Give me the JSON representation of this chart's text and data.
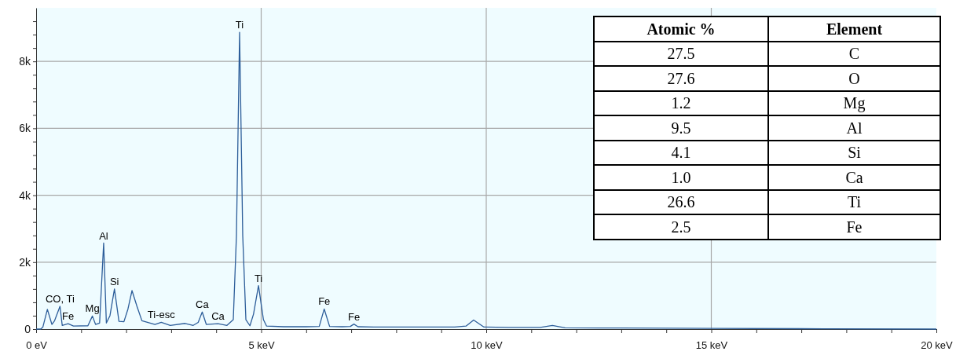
{
  "chart_data": [
    {
      "type": "line",
      "x": [
        0,
        0.1,
        0.15,
        0.25,
        0.35,
        0.41,
        0.53,
        0.58,
        0.71,
        0.83,
        1.15,
        1.25,
        1.32,
        1.41,
        1.5,
        1.56,
        1.64,
        1.74,
        1.84,
        1.95,
        2.04,
        2.13,
        2.24,
        2.35,
        2.64,
        2.78,
        2.98,
        3.31,
        3.49,
        3.6,
        3.69,
        3.78,
        4.04,
        4.24,
        4.38,
        4.45,
        4.52,
        4.59,
        4.66,
        4.75,
        4.83,
        4.94,
        5.05,
        5.12,
        5.5,
        6.0,
        6.29,
        6.4,
        6.52,
        6.8,
        6.98,
        7.06,
        7.15,
        7.5,
        8.5,
        9.3,
        9.55,
        9.72,
        9.95,
        10.5,
        11.2,
        11.47,
        11.75,
        13,
        15,
        17.5,
        20
      ],
      "series": [
        {
          "color": "#2d5e9a",
          "values": [
            0,
            0,
            60,
            590,
            140,
            250,
            680,
            110,
            160,
            90,
            100,
            390,
            140,
            180,
            2570,
            180,
            400,
            1200,
            230,
            220,
            600,
            1150,
            680,
            250,
            140,
            200,
            110,
            170,
            110,
            200,
            510,
            140,
            160,
            110,
            280,
            2790,
            8870,
            2790,
            280,
            100,
            450,
            1300,
            280,
            90,
            70,
            70,
            80,
            600,
            80,
            70,
            80,
            150,
            70,
            60,
            60,
            60,
            90,
            270,
            60,
            50,
            50,
            110,
            40,
            30,
            20,
            10,
            0
          ]
        }
      ],
      "xlim": [
        0,
        20
      ],
      "xticks": [
        {
          "value": 0,
          "label": "0 eV"
        },
        {
          "value": 1,
          "label": null
        },
        {
          "value": 2,
          "label": null
        },
        {
          "value": 3,
          "label": null
        },
        {
          "value": 4,
          "label": null
        },
        {
          "value": 5,
          "label": "5 keV"
        },
        {
          "value": 6,
          "label": null
        },
        {
          "value": 7,
          "label": null
        },
        {
          "value": 8,
          "label": null
        },
        {
          "value": 9,
          "label": null
        },
        {
          "value": 10,
          "label": "10 keV"
        },
        {
          "value": 11,
          "label": null
        },
        {
          "value": 12,
          "label": null
        },
        {
          "value": 13,
          "label": null
        },
        {
          "value": 14,
          "label": null
        },
        {
          "value": 15,
          "label": "15 keV"
        },
        {
          "value": 16,
          "label": null
        },
        {
          "value": 17,
          "label": null
        },
        {
          "value": 18,
          "label": null
        },
        {
          "value": 19,
          "label": null
        },
        {
          "value": 20,
          "label": "20 keV"
        }
      ],
      "ylim": [
        0,
        9600
      ],
      "yticks": [
        {
          "value": 0,
          "label": "0"
        },
        {
          "value": 400,
          "label": null
        },
        {
          "value": 800,
          "label": null
        },
        {
          "value": 1200,
          "label": null
        },
        {
          "value": 1600,
          "label": null
        },
        {
          "value": 2000,
          "label": "2k"
        },
        {
          "value": 2400,
          "label": null
        },
        {
          "value": 2800,
          "label": null
        },
        {
          "value": 3200,
          "label": null
        },
        {
          "value": 3600,
          "label": null
        },
        {
          "value": 4000,
          "label": "4k"
        },
        {
          "value": 4400,
          "label": null
        },
        {
          "value": 4800,
          "label": null
        },
        {
          "value": 5200,
          "label": null
        },
        {
          "value": 5600,
          "label": null
        },
        {
          "value": 6000,
          "label": "6k"
        },
        {
          "value": 6400,
          "label": null
        },
        {
          "value": 6800,
          "label": null
        },
        {
          "value": 7200,
          "label": null
        },
        {
          "value": 7600,
          "label": null
        },
        {
          "value": 8000,
          "label": "8k"
        },
        {
          "value": 8400,
          "label": null
        },
        {
          "value": 8800,
          "label": null
        },
        {
          "value": 9200,
          "label": null
        }
      ],
      "grid": true,
      "annotations": [
        {
          "text": "CO, Ti",
          "x": 0.53,
          "y": 680
        },
        {
          "text": "Fe",
          "x": 0.71,
          "y": 160
        },
        {
          "text": "Mg",
          "x": 1.25,
          "y": 390
        },
        {
          "text": "Al",
          "x": 1.5,
          "y": 2570
        },
        {
          "text": "Si",
          "x": 1.74,
          "y": 1200
        },
        {
          "text": "Ti-esc",
          "x": 2.78,
          "y": 200
        },
        {
          "text": "Ca",
          "x": 3.69,
          "y": 510
        },
        {
          "text": "Ca",
          "x": 4.04,
          "y": 160
        },
        {
          "text": "Ti",
          "x": 4.52,
          "y": 8870
        },
        {
          "text": "Ti",
          "x": 4.94,
          "y": 1300
        },
        {
          "text": "Fe",
          "x": 6.4,
          "y": 600
        },
        {
          "text": "Fe",
          "x": 7.06,
          "y": 150
        }
      ]
    },
    {
      "type": "other",
      "xlabel": "Element",
      "ylabel": "Atomic %",
      "categories": [
        "C",
        "O",
        "Mg",
        "Al",
        "Si",
        "Ca",
        "Ti",
        "Fe"
      ],
      "values": [
        27.5,
        27.6,
        1.2,
        9.5,
        4.1,
        1.0,
        26.6,
        2.5
      ],
      "value_labels": [
        "27.5",
        "27.6",
        "1.2",
        "9.5",
        "4.1",
        "1.0",
        "26.6",
        "2.5"
      ]
    }
  ]
}
